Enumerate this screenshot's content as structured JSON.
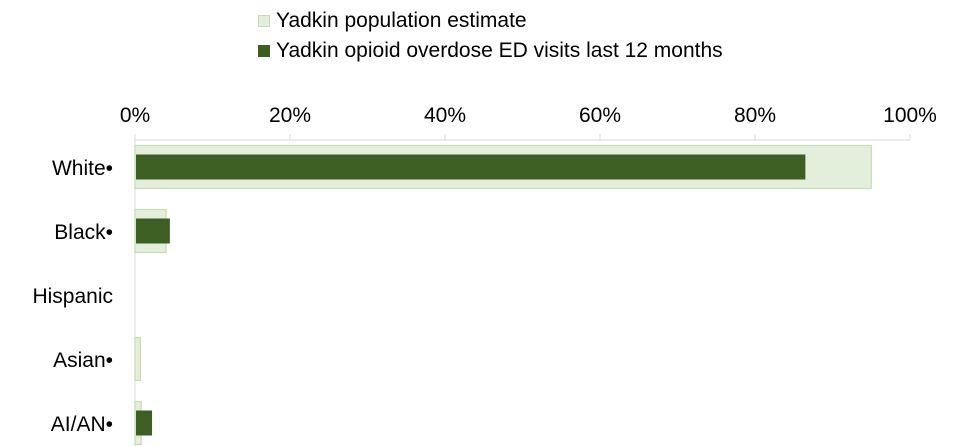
{
  "chart_data": {
    "type": "bar",
    "orientation": "horizontal",
    "categories": [
      "White•",
      "Black•",
      "Hispanic",
      "Asian•",
      "AI/AN•"
    ],
    "series": [
      {
        "name": "Yadkin population estimate",
        "values": [
          95,
          4,
          0,
          0.7,
          0.8
        ],
        "color": "#e3eedb",
        "stroke": "#c6dcb6"
      },
      {
        "name": "Yadkin opioid overdose ED visits last 12 months",
        "values": [
          86.5,
          4.5,
          0,
          0,
          2.2
        ],
        "color": "#3e5f23"
      }
    ],
    "xlim": [
      0,
      100
    ],
    "xticks": [
      "0%",
      "20%",
      "40%",
      "60%",
      "80%",
      "100%"
    ],
    "tick_values": [
      0,
      20,
      40,
      60,
      80,
      100
    ],
    "axis_position": "top",
    "legend_position": "top",
    "grid": false
  }
}
